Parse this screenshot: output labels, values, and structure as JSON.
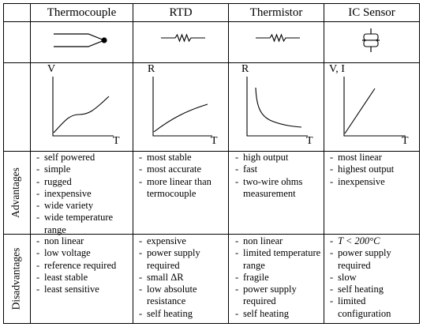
{
  "headers": [
    "Thermocouple",
    "RTD",
    "Thermistor",
    "IC Sensor"
  ],
  "row_labels": {
    "advantages": "Advantages",
    "disadvantages": "Disadvantages"
  },
  "graphs": [
    {
      "ylabel": "V",
      "xlabel": "T",
      "icon": "thermocouple-junction-icon"
    },
    {
      "ylabel": "R",
      "xlabel": "T",
      "icon": "resistor-icon"
    },
    {
      "ylabel": "R",
      "xlabel": "T",
      "icon": "thermistor-icon"
    },
    {
      "ylabel": "V, I",
      "xlabel": "T",
      "icon": "ic-sensor-icon"
    }
  ],
  "advantages": [
    [
      "self powered",
      "simple",
      "rugged",
      "inexpensive",
      "wide variety",
      "wide temperature range"
    ],
    [
      "most stable",
      "most accurate",
      "more linear than termocouple"
    ],
    [
      "high output",
      "fast",
      "two-wire ohms measurement"
    ],
    [
      "most linear",
      "highest output",
      "inexpensive"
    ]
  ],
  "disadvantages": [
    [
      "non linear",
      "low voltage",
      "reference required",
      "least stable",
      "least sensitive"
    ],
    [
      "expensive",
      "power supply required",
      "small ΔR",
      "low absolute resistance",
      "self heating"
    ],
    [
      "non linear",
      "limited temperature range",
      "fragile",
      "power supply required",
      "self heating"
    ],
    [
      "T < 200°C",
      "power supply required",
      "slow",
      "self heating",
      "limited configuration"
    ]
  ]
}
